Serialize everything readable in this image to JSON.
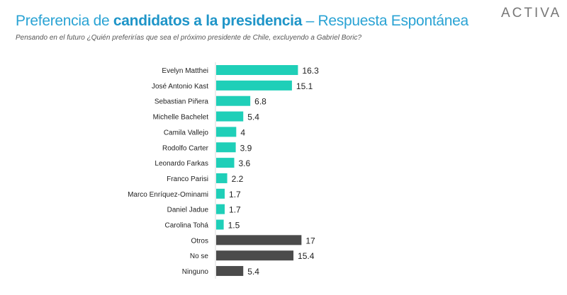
{
  "header": {
    "title_part1": "Preferencia de ",
    "title_bold": "candidatos a la presidencia",
    "title_part2": " – Respuesta Espontánea",
    "subtitle": "Pensando en el futuro ¿Quién preferirías que sea el próximo presidente de Chile, excluyendo a Gabriel Boric?",
    "logo": "ACTIVA"
  },
  "colors": {
    "candidate": "#1fcfb8",
    "other": "#4b4b4b",
    "title": "#2aa3d4"
  },
  "chart_data": {
    "type": "bar",
    "orientation": "horizontal",
    "categories": [
      "Evelyn Matthei",
      "José Antonio Kast",
      "Sebastian Piñera",
      "Michelle Bachelet",
      "Camila Vallejo",
      "Rodolfo Carter",
      "Leonardo Farkas",
      "Franco Parisi",
      "Marco Enríquez-Ominami",
      "Daniel Jadue",
      "Carolina Tohá",
      "Otros",
      "No se",
      "Ninguno"
    ],
    "values": [
      16.3,
      15.1,
      6.8,
      5.4,
      4,
      3.9,
      3.6,
      2.2,
      1.7,
      1.7,
      1.5,
      17,
      15.4,
      5.4
    ],
    "groups": [
      "candidate",
      "candidate",
      "candidate",
      "candidate",
      "candidate",
      "candidate",
      "candidate",
      "candidate",
      "candidate",
      "candidate",
      "candidate",
      "other",
      "other",
      "other"
    ],
    "data_labels": true,
    "grid": false
  }
}
